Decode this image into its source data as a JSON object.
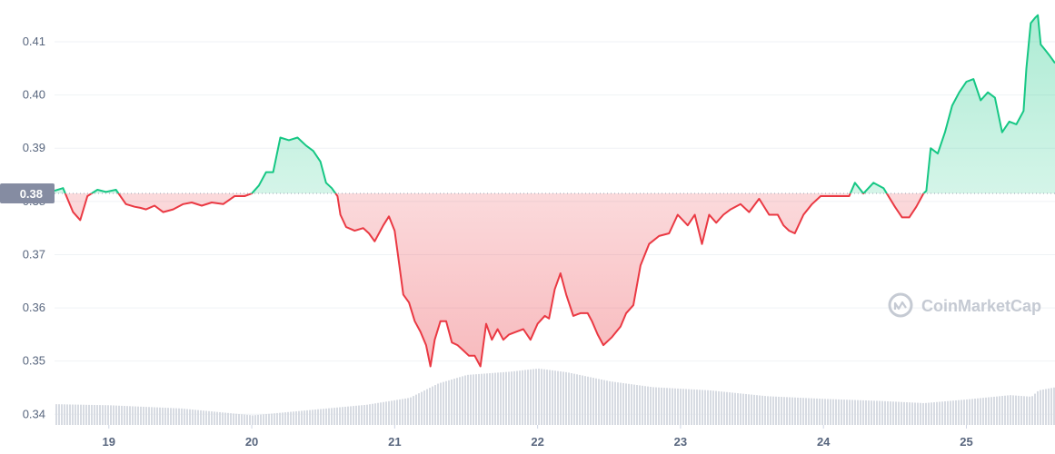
{
  "chart_data": {
    "type": "area",
    "watermark": "CoinMarketCap",
    "baseline": 0.3815,
    "baseline_label": "0.38",
    "ylim": [
      0.338,
      0.417
    ],
    "xlim": [
      18.62,
      25.62
    ],
    "y_ticks": [
      "0.34",
      "0.35",
      "0.36",
      "0.37",
      "0.38",
      "0.39",
      "0.40",
      "0.41"
    ],
    "x_ticks": [
      "19",
      "20",
      "21",
      "22",
      "23",
      "24",
      "25"
    ],
    "grid": true,
    "colors": {
      "up": "#16c784",
      "down": "#ea3943",
      "volume": "#d7dbe2",
      "badge": "#858ca2"
    },
    "price": {
      "x": [
        18.62,
        18.68,
        18.75,
        18.8,
        18.85,
        18.92,
        18.98,
        19.05,
        19.12,
        19.18,
        19.22,
        19.26,
        19.32,
        19.38,
        19.45,
        19.52,
        19.58,
        19.65,
        19.72,
        19.8,
        19.88,
        19.95,
        20.0,
        20.05,
        20.1,
        20.15,
        20.2,
        20.26,
        20.32,
        20.38,
        20.43,
        20.48,
        20.52,
        20.56,
        20.6,
        20.62,
        20.66,
        20.72,
        20.78,
        20.82,
        20.86,
        20.92,
        20.96,
        21.0,
        21.02,
        21.06,
        21.1,
        21.14,
        21.18,
        21.22,
        21.25,
        21.28,
        21.32,
        21.36,
        21.4,
        21.44,
        21.48,
        21.52,
        21.56,
        21.6,
        21.64,
        21.68,
        21.72,
        21.76,
        21.8,
        21.85,
        21.9,
        21.95,
        22.0,
        22.05,
        22.08,
        22.12,
        22.16,
        22.2,
        22.25,
        22.3,
        22.35,
        22.38,
        22.42,
        22.46,
        22.52,
        22.58,
        22.62,
        22.67,
        22.72,
        22.78,
        22.85,
        22.92,
        22.98,
        23.05,
        23.1,
        23.15,
        23.2,
        23.25,
        23.3,
        23.35,
        23.42,
        23.48,
        23.55,
        23.62,
        23.68,
        23.72,
        23.76,
        23.8,
        23.86,
        23.92,
        23.98,
        24.05,
        24.12,
        24.18,
        24.22,
        24.28,
        24.35,
        24.42,
        24.5,
        24.55,
        24.6,
        24.65,
        24.7,
        24.72,
        24.75,
        24.8,
        24.85,
        24.9,
        24.95,
        25.0,
        25.05,
        25.1,
        25.15,
        25.2,
        25.25,
        25.3,
        25.35,
        25.4,
        25.42,
        25.45,
        25.48,
        25.5,
        25.52,
        25.55,
        25.58,
        25.62
      ],
      "y": [
        0.382,
        0.3825,
        0.378,
        0.3765,
        0.381,
        0.3822,
        0.3818,
        0.3822,
        0.3795,
        0.379,
        0.3788,
        0.3785,
        0.3792,
        0.378,
        0.3785,
        0.3795,
        0.3798,
        0.3792,
        0.3798,
        0.3795,
        0.381,
        0.381,
        0.3815,
        0.383,
        0.3855,
        0.3855,
        0.392,
        0.3915,
        0.392,
        0.3905,
        0.3895,
        0.3875,
        0.3835,
        0.3825,
        0.381,
        0.3775,
        0.3752,
        0.3745,
        0.375,
        0.374,
        0.3725,
        0.3755,
        0.3772,
        0.3745,
        0.3705,
        0.3625,
        0.361,
        0.3575,
        0.3555,
        0.353,
        0.349,
        0.354,
        0.3575,
        0.3575,
        0.3535,
        0.353,
        0.352,
        0.351,
        0.351,
        0.349,
        0.357,
        0.354,
        0.356,
        0.354,
        0.355,
        0.3555,
        0.356,
        0.354,
        0.357,
        0.3585,
        0.358,
        0.3635,
        0.3665,
        0.3625,
        0.3585,
        0.359,
        0.359,
        0.3575,
        0.355,
        0.353,
        0.3545,
        0.3565,
        0.359,
        0.3605,
        0.368,
        0.372,
        0.3735,
        0.374,
        0.3775,
        0.3755,
        0.3775,
        0.372,
        0.3775,
        0.376,
        0.3775,
        0.3785,
        0.3795,
        0.378,
        0.3805,
        0.3775,
        0.3775,
        0.3755,
        0.3745,
        0.374,
        0.3775,
        0.3795,
        0.381,
        0.381,
        0.381,
        0.381,
        0.3835,
        0.3815,
        0.3835,
        0.3825,
        0.379,
        0.377,
        0.377,
        0.379,
        0.3815,
        0.382,
        0.39,
        0.389,
        0.393,
        0.398,
        0.4005,
        0.4025,
        0.403,
        0.399,
        0.4005,
        0.3995,
        0.393,
        0.395,
        0.3945,
        0.397,
        0.405,
        0.4135,
        0.4145,
        0.415,
        0.4095,
        0.4085,
        0.4075,
        0.406
      ]
    },
    "volume": {
      "x": [
        18.62,
        19.0,
        19.5,
        20.0,
        20.4,
        20.8,
        21.1,
        21.3,
        21.5,
        21.8,
        22.0,
        22.2,
        22.5,
        22.8,
        23.2,
        23.6,
        24.0,
        24.4,
        24.7,
        25.0,
        25.3,
        25.45,
        25.5,
        25.62
      ],
      "y": [
        0.3419,
        0.3417,
        0.3411,
        0.3398,
        0.3408,
        0.3418,
        0.3431,
        0.3458,
        0.3474,
        0.348,
        0.3486,
        0.3479,
        0.3462,
        0.3451,
        0.3445,
        0.3434,
        0.3429,
        0.3425,
        0.3421,
        0.3428,
        0.3436,
        0.3433,
        0.3445,
        0.3451
      ]
    }
  }
}
